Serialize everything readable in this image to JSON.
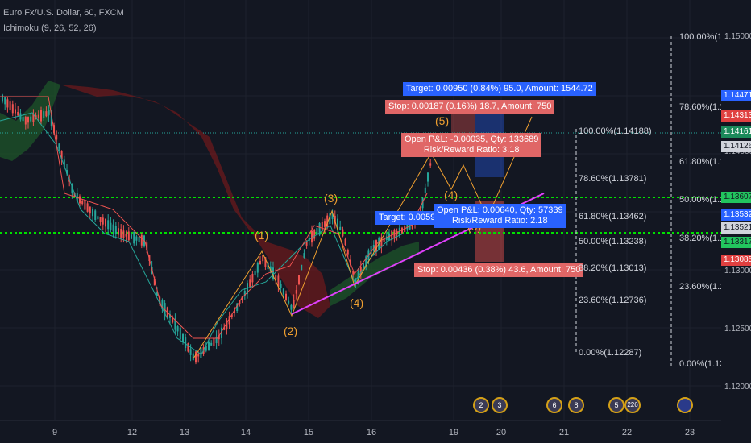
{
  "header": {
    "symbol_line": "Euro Fx/U.S. Dollar, 60, FXCM",
    "indicator_line": "Ichimoku (9, 26, 52, 26)"
  },
  "price_axis": {
    "ticks": [
      "1.15000",
      "1.14500",
      "1.14000",
      "1.13500",
      "1.13000",
      "1.12500",
      "1.12000"
    ],
    "labels": [
      {
        "text": "1.14471",
        "color": "#2962ff"
      },
      {
        "text": "1.14313",
        "color": "#e04040"
      },
      {
        "text": "1.14161",
        "color": "#1b8a5a"
      },
      {
        "text": "1.14126",
        "color": "#d1d4dc"
      },
      {
        "text": "1.13607",
        "color": "#22c55e"
      },
      {
        "text": "1.13532",
        "color": "#2962ff"
      },
      {
        "text": "1.13521",
        "color": "#d1d4dc"
      },
      {
        "text": "1.13317",
        "color": "#22c55e"
      },
      {
        "text": "1.13085",
        "color": "#e04040"
      }
    ]
  },
  "time_axis": [
    "9",
    "12",
    "13",
    "14",
    "15",
    "16",
    "19",
    "20",
    "21",
    "22",
    "23"
  ],
  "right_fib": [
    "100.00%(1.1",
    "78.60%(1.1",
    "61.80%(1.1",
    "50.00%(1.1",
    "38.20%(1.1",
    "23.60%(1.1",
    "0.00%(1.12"
  ],
  "mid_fib": [
    "100.00%(1.14188)",
    "78.60%(1.13781)",
    "61.80%(1.13462)",
    "50.00%(1.13238)",
    "38.20%(1.13013)",
    "23.60%(1.12736)",
    "0.00%(1.12287)"
  ],
  "waves": [
    "(1)",
    "(2)",
    "(3)",
    "(4)",
    "(5)",
    "(4)",
    "(5)"
  ],
  "trades": {
    "target1": "Target: 0.00950 (0.84%) 95.0, Amount: 1544.72",
    "stop1": "Stop: 0.00187 (0.16%) 18.7, Amount: 750",
    "pl1a": "Open P&L: -0.00035, Qty: 133689",
    "pl1b": "Risk/Reward Ratio: 3.18",
    "target2": "Target: 0.0059",
    "pl2a": "Open P&L: 0.00640, Qty: 57339",
    "pl2b": "Risk/Reward Ratio: 2.18",
    "stop2": "Stop: 0.00436 (0.38%) 43.6, Amount: 750"
  },
  "events": [
    "2",
    "3",
    "6",
    "8",
    "5",
    "226"
  ],
  "colors": {
    "background": "#131722",
    "up": "#26a69a",
    "down": "#ef5350",
    "level": "#00e000",
    "trend": "#e040fb"
  }
}
